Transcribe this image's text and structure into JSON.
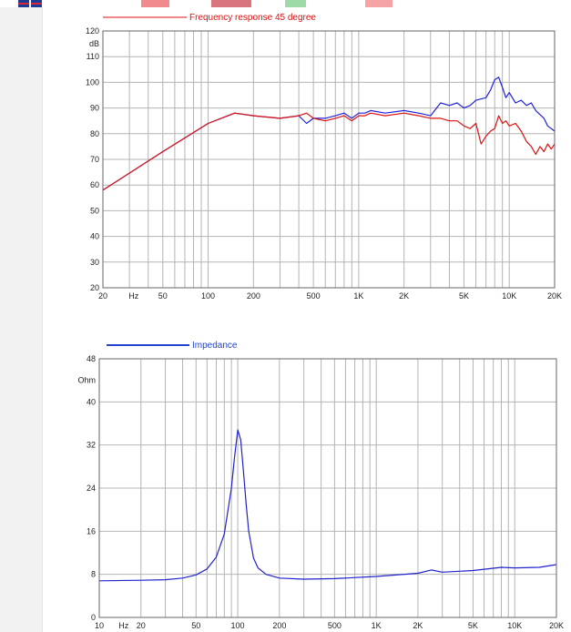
{
  "page": {
    "colors": {
      "sidebar": "#f2f2f2",
      "grid": "#b4b4b4",
      "tab1": "#f08a8f",
      "tab2": "#d9757e",
      "tab3": "#9ed9a8",
      "tab4": "#f6a3a6"
    }
  },
  "chart_data": [
    {
      "type": "line",
      "title": "Frequency response 45 degree",
      "ylabel": "dB",
      "xscale": "log",
      "xlim": [
        20,
        20000
      ],
      "ylim": [
        20,
        120
      ],
      "grid": true,
      "x_ticks": [
        {
          "value": 20,
          "label": "20"
        },
        {
          "value": 32,
          "label": "Hz"
        },
        {
          "value": 50,
          "label": "50"
        },
        {
          "value": 100,
          "label": "100"
        },
        {
          "value": 200,
          "label": "200"
        },
        {
          "value": 500,
          "label": "500"
        },
        {
          "value": 1000,
          "label": "1K"
        },
        {
          "value": 2000,
          "label": "2K"
        },
        {
          "value": 5000,
          "label": "5K"
        },
        {
          "value": 10000,
          "label": "10K"
        },
        {
          "value": 20000,
          "label": "20K"
        }
      ],
      "y_ticks": [
        {
          "value": 120,
          "label": "120"
        },
        {
          "value": 115,
          "label": "dB"
        },
        {
          "value": 110,
          "label": "110"
        },
        {
          "value": 100,
          "label": "100"
        },
        {
          "value": 90,
          "label": "90"
        },
        {
          "value": 80,
          "label": "80"
        },
        {
          "value": 70,
          "label": "70"
        },
        {
          "value": 60,
          "label": "60"
        },
        {
          "value": 50,
          "label": "50"
        },
        {
          "value": 40,
          "label": "40"
        },
        {
          "value": 30,
          "label": "30"
        },
        {
          "value": 20,
          "label": "20"
        }
      ],
      "series": [
        {
          "color": "#2222dd",
          "x": [
            20,
            50,
            100,
            150,
            200,
            300,
            400,
            450,
            500,
            600,
            700,
            800,
            900,
            1000,
            1100,
            1200,
            1500,
            2000,
            2500,
            3000,
            3500,
            4000,
            4500,
            5000,
            5500,
            6000,
            7000,
            7500,
            8000,
            8500,
            9000,
            9500,
            10000,
            11000,
            12000,
            13000,
            14000,
            15000,
            17000,
            18000,
            20000
          ],
          "y": [
            58,
            73,
            84,
            88,
            87,
            86,
            87,
            84,
            86,
            86,
            87,
            88,
            86,
            88,
            88,
            89,
            88,
            89,
            88,
            87,
            92,
            91,
            92,
            90,
            91,
            93,
            94,
            97,
            101,
            102,
            98,
            94,
            96,
            92,
            93,
            91,
            92,
            89,
            86,
            83,
            81
          ]
        },
        {
          "name": "Frequency response 45 degree",
          "color": "#dd1111",
          "x": [
            20,
            50,
            100,
            150,
            200,
            300,
            400,
            450,
            500,
            600,
            700,
            800,
            900,
            1000,
            1100,
            1200,
            1500,
            2000,
            2500,
            3000,
            3500,
            4000,
            4500,
            5000,
            5500,
            6000,
            6500,
            7000,
            7500,
            8000,
            8500,
            9000,
            9500,
            10000,
            11000,
            12000,
            13000,
            14000,
            15000,
            16000,
            17000,
            18000,
            19000,
            20000
          ],
          "y": [
            58,
            73,
            84,
            88,
            87,
            86,
            87,
            88,
            86,
            85,
            86,
            87,
            85,
            87,
            87,
            88,
            87,
            88,
            87,
            86,
            86,
            85,
            85,
            83,
            82,
            84,
            76,
            79,
            81,
            82,
            87,
            84,
            85,
            83,
            84,
            81,
            77,
            75,
            72,
            75,
            73,
            76,
            74,
            76
          ]
        }
      ]
    },
    {
      "type": "line",
      "title": "",
      "ylabel": "Ohm",
      "xscale": "log",
      "xlim": [
        10,
        20000
      ],
      "ylim": [
        0,
        48
      ],
      "grid": true,
      "x_ticks": [
        {
          "value": 10,
          "label": "10"
        },
        {
          "value": 15,
          "label": "Hz"
        },
        {
          "value": 20,
          "label": "20"
        },
        {
          "value": 50,
          "label": "50"
        },
        {
          "value": 100,
          "label": "100"
        },
        {
          "value": 200,
          "label": "200"
        },
        {
          "value": 500,
          "label": "500"
        },
        {
          "value": 1000,
          "label": "1K"
        },
        {
          "value": 2000,
          "label": "2K"
        },
        {
          "value": 5000,
          "label": "5K"
        },
        {
          "value": 10000,
          "label": "10K"
        },
        {
          "value": 20000,
          "label": "20K"
        }
      ],
      "y_ticks": [
        {
          "value": 48,
          "label": "48"
        },
        {
          "value": 44,
          "label": "Ohm"
        },
        {
          "value": 40,
          "label": "40"
        },
        {
          "value": 32,
          "label": "32"
        },
        {
          "value": 24,
          "label": "24"
        },
        {
          "value": 16,
          "label": "16"
        },
        {
          "value": 8,
          "label": "8"
        },
        {
          "value": 0,
          "label": "0"
        }
      ],
      "series": [
        {
          "name": "Impedance",
          "color": "#2222cc",
          "x": [
            10,
            20,
            30,
            40,
            50,
            60,
            70,
            80,
            90,
            95,
            100,
            105,
            110,
            115,
            120,
            130,
            140,
            160,
            200,
            300,
            500,
            1000,
            2000,
            2500,
            3000,
            5000,
            8000,
            10000,
            15000,
            20000
          ],
          "y": [
            6.8,
            6.9,
            7.0,
            7.3,
            7.9,
            9.0,
            11.2,
            15.5,
            24,
            30,
            34.8,
            33,
            27,
            21,
            16,
            11,
            9.2,
            8.0,
            7.3,
            7.1,
            7.2,
            7.6,
            8.2,
            8.8,
            8.4,
            8.7,
            9.3,
            9.2,
            9.3,
            9.8
          ]
        }
      ]
    }
  ]
}
